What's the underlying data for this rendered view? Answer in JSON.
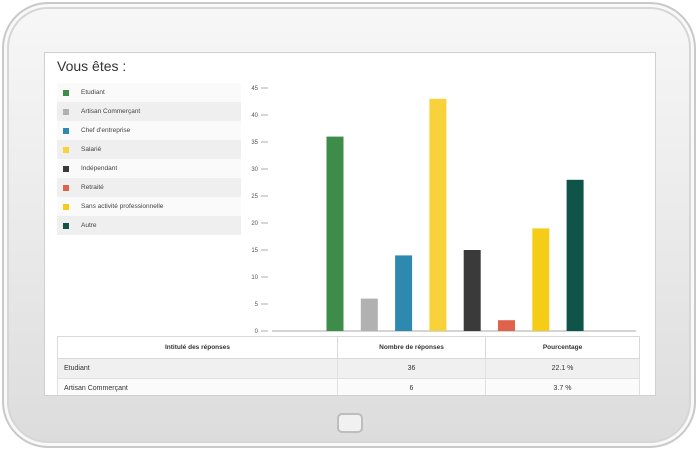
{
  "title": "Vous êtes :",
  "chart_data": {
    "type": "bar",
    "categories": [
      "Etudiant",
      "Artisan Commerçant",
      "Chef d'entreprise",
      "Salarié",
      "Indépendant",
      "Retraité",
      "Sans activité professionnelle",
      "Autre"
    ],
    "values": [
      36,
      6,
      14,
      43,
      15,
      2,
      19,
      28
    ],
    "colors": [
      "#3e8c4a",
      "#b1b1b1",
      "#2e89b0",
      "#f7d23a",
      "#3a3a3a",
      "#e0624b",
      "#f5cc18",
      "#0f5448"
    ],
    "ylim": [
      0,
      45
    ],
    "yticks": [
      0,
      5,
      10,
      15,
      20,
      25,
      30,
      35,
      40,
      45
    ],
    "legend_position": "left",
    "grid": false
  },
  "table": {
    "headers": [
      "Intitulé des réponses",
      "Nombre de réponses",
      "Pourcentage"
    ],
    "rows": [
      [
        "Etudiant",
        "36",
        "22.1 %"
      ],
      [
        "Artisan Commerçant",
        "6",
        "3.7 %"
      ]
    ]
  }
}
